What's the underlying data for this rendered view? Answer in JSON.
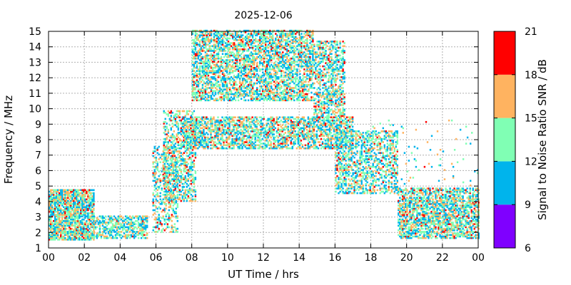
{
  "chart_data": {
    "type": "heatmap",
    "title": "2025-12-06",
    "xlabel": "UT Time / hrs",
    "ylabel": "Frequency / MHz",
    "xlim": [
      0,
      24
    ],
    "ylim": [
      1,
      15
    ],
    "xticks": [
      "00",
      "02",
      "04",
      "06",
      "08",
      "10",
      "12",
      "14",
      "16",
      "18",
      "20",
      "22",
      "00"
    ],
    "yticks": [
      "1",
      "2",
      "3",
      "4",
      "5",
      "6",
      "7",
      "8",
      "9",
      "10",
      "11",
      "12",
      "13",
      "14",
      "15"
    ],
    "grid": true,
    "colorbar": {
      "label": "Signal to Noise Ratio SNR / dB",
      "ticks": [
        "6",
        "9",
        "12",
        "15",
        "18",
        "21"
      ],
      "bands": [
        {
          "from": 6,
          "to": 9,
          "color": "#7f00ff"
        },
        {
          "from": 9,
          "to": 12,
          "color": "#00b4ec"
        },
        {
          "from": 12,
          "to": 15,
          "color": "#80ffb4"
        },
        {
          "from": 15,
          "to": 18,
          "color": "#ffb360"
        },
        {
          "from": 18,
          "to": 21,
          "color": "#ff0000"
        }
      ]
    },
    "regions": [
      {
        "name": "night-low-band",
        "t": [
          0,
          2.5
        ],
        "f": [
          1.5,
          4.7
        ],
        "density": 0.8,
        "snr": [
          9,
          21
        ]
      },
      {
        "name": "night-low-band-tail",
        "t": [
          2.5,
          5.5
        ],
        "f": [
          1.6,
          3.1
        ],
        "density": 0.6,
        "snr": [
          9,
          19
        ]
      },
      {
        "name": "sunrise-ramp",
        "t": [
          5.8,
          7.2
        ],
        "f": [
          2.0,
          7.5
        ],
        "density": 0.35,
        "snr": [
          9,
          21
        ]
      },
      {
        "name": "sunrise-rise",
        "t": [
          6.4,
          8.2
        ],
        "f": [
          4.0,
          9.8
        ],
        "density": 0.45,
        "snr": [
          9,
          21
        ]
      },
      {
        "name": "day-9mhz-band",
        "t": [
          7.5,
          17.0
        ],
        "f": [
          7.4,
          9.4
        ],
        "density": 0.6,
        "snr": [
          9,
          21
        ]
      },
      {
        "name": "day-high-band",
        "t": [
          8.0,
          14.8
        ],
        "f": [
          10.5,
          15.0
        ],
        "density": 0.6,
        "snr": [
          9,
          21
        ]
      },
      {
        "name": "afternoon-high-band",
        "t": [
          14.8,
          16.5
        ],
        "f": [
          9.5,
          14.3
        ],
        "density": 0.5,
        "snr": [
          9,
          21
        ]
      },
      {
        "name": "evening-descent",
        "t": [
          16.0,
          19.5
        ],
        "f": [
          4.5,
          8.5
        ],
        "density": 0.45,
        "snr": [
          9,
          20
        ]
      },
      {
        "name": "evening-low-band",
        "t": [
          19.5,
          24.0
        ],
        "f": [
          1.6,
          4.8
        ],
        "density": 0.65,
        "snr": [
          9,
          21
        ]
      },
      {
        "name": "sparse-mid",
        "t": [
          18.0,
          24.0
        ],
        "f": [
          5.0,
          9.2
        ],
        "density": 0.03,
        "snr": [
          9,
          21
        ]
      }
    ]
  }
}
